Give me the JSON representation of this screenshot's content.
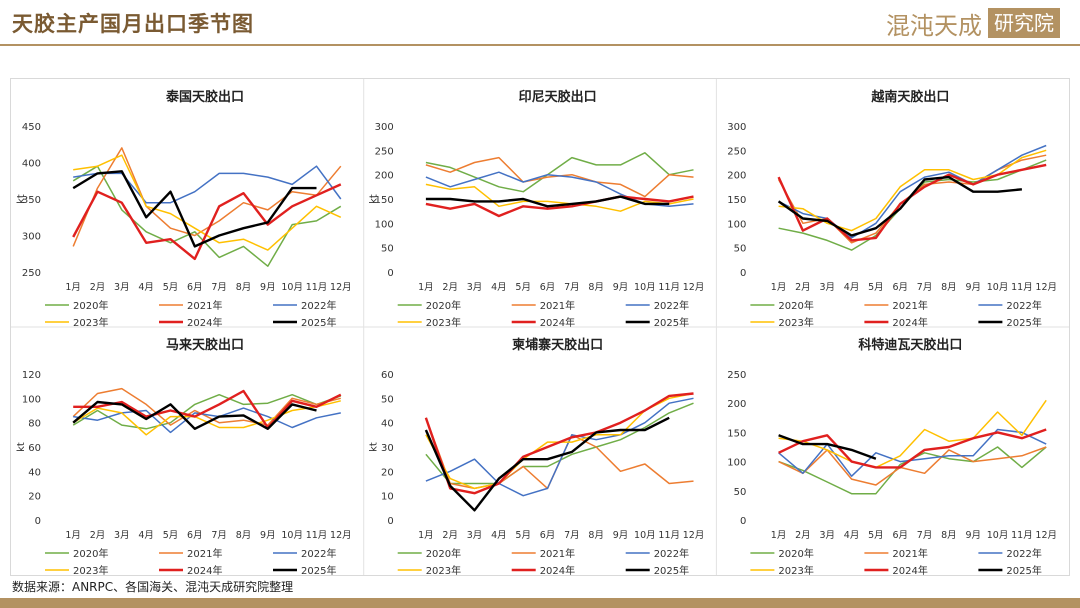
{
  "page": {
    "title": "天胶主产国月出口季节图",
    "brand_text": "混沌天成",
    "brand_box": "研究院",
    "source": "数据来源：ANRPC、各国海关、混沌天成研究院整理"
  },
  "chart_data": [
    {
      "type": "line",
      "title": "泰国天胶出口",
      "ylabel": "kt",
      "ylim": [
        250,
        450
      ],
      "yticks": [
        250,
        300,
        350,
        400,
        450
      ],
      "categories": [
        "1月",
        "2月",
        "3月",
        "4月",
        "5月",
        "6月",
        "7月",
        "8月",
        "9月",
        "10月",
        "11月",
        "12月"
      ],
      "series": [
        {
          "name": "2020年",
          "color": "#70ad47",
          "values": [
            375,
            395,
            335,
            305,
            290,
            305,
            270,
            285,
            258,
            315,
            320,
            340
          ]
        },
        {
          "name": "2021年",
          "color": "#ed7d31",
          "values": [
            285,
            365,
            420,
            340,
            310,
            300,
            320,
            345,
            335,
            360,
            355,
            395
          ]
        },
        {
          "name": "2022年",
          "color": "#4472c4",
          "values": [
            380,
            385,
            385,
            345,
            345,
            360,
            385,
            385,
            380,
            370,
            395,
            350
          ]
        },
        {
          "name": "2023年",
          "color": "#ffc000",
          "values": [
            390,
            395,
            410,
            340,
            330,
            310,
            290,
            295,
            280,
            310,
            340,
            325
          ]
        },
        {
          "name": "2024年",
          "color": "#e0201f",
          "values": [
            298,
            360,
            345,
            290,
            295,
            268,
            340,
            358,
            315,
            340,
            355,
            370
          ]
        },
        {
          "name": "2025年",
          "color": "#000000",
          "values": [
            365,
            385,
            388,
            325,
            360,
            285,
            300,
            310,
            318,
            365,
            365,
            null
          ]
        }
      ]
    },
    {
      "type": "line",
      "title": "印尼天胶出口",
      "ylabel": "kt",
      "ylim": [
        0,
        300
      ],
      "yticks": [
        0,
        50,
        100,
        150,
        200,
        250,
        300
      ],
      "categories": [
        "1月",
        "2月",
        "3月",
        "4月",
        "5月",
        "6月",
        "7月",
        "8月",
        "9月",
        "10月",
        "11月",
        "12月"
      ],
      "series": [
        {
          "name": "2020年",
          "color": "#70ad47",
          "values": [
            225,
            215,
            195,
            175,
            165,
            200,
            235,
            220,
            220,
            245,
            200,
            210
          ]
        },
        {
          "name": "2021年",
          "color": "#ed7d31",
          "values": [
            220,
            205,
            225,
            235,
            185,
            195,
            200,
            185,
            180,
            155,
            200,
            195
          ]
        },
        {
          "name": "2022年",
          "color": "#4472c4",
          "values": [
            195,
            175,
            190,
            205,
            185,
            200,
            195,
            185,
            160,
            140,
            135,
            140
          ]
        },
        {
          "name": "2023年",
          "color": "#ffc000",
          "values": [
            180,
            170,
            175,
            135,
            145,
            145,
            140,
            135,
            125,
            145,
            140,
            150
          ]
        },
        {
          "name": "2024年",
          "color": "#e0201f",
          "values": [
            140,
            130,
            140,
            115,
            135,
            130,
            135,
            145,
            155,
            150,
            145,
            155
          ]
        },
        {
          "name": "2025年",
          "color": "#000000",
          "values": [
            150,
            150,
            145,
            145,
            150,
            135,
            140,
            145,
            155,
            140,
            140,
            null
          ]
        }
      ]
    },
    {
      "type": "line",
      "title": "越南天胶出口",
      "ylabel": "",
      "ylim": [
        0,
        300
      ],
      "yticks": [
        0,
        50,
        100,
        150,
        200,
        250,
        300
      ],
      "categories": [
        "1月",
        "2月",
        "3月",
        "4月",
        "5月",
        "6月",
        "7月",
        "8月",
        "9月",
        "10月",
        "11月",
        "12月"
      ],
      "series": [
        {
          "name": "2020年",
          "color": "#70ad47",
          "values": [
            90,
            80,
            65,
            45,
            75,
            130,
            185,
            190,
            185,
            190,
            210,
            230
          ]
        },
        {
          "name": "2021年",
          "color": "#ed7d31",
          "values": [
            190,
            100,
            110,
            60,
            80,
            140,
            180,
            185,
            180,
            210,
            230,
            240
          ]
        },
        {
          "name": "2022年",
          "color": "#4472c4",
          "values": [
            145,
            120,
            110,
            70,
            100,
            165,
            195,
            205,
            180,
            210,
            240,
            260
          ]
        },
        {
          "name": "2023年",
          "color": "#ffc000",
          "values": [
            135,
            130,
            100,
            85,
            110,
            175,
            210,
            210,
            190,
            200,
            235,
            250
          ]
        },
        {
          "name": "2024年",
          "color": "#e0201f",
          "values": [
            195,
            85,
            110,
            65,
            70,
            140,
            175,
            200,
            180,
            200,
            210,
            220
          ]
        },
        {
          "name": "2025年",
          "color": "#000000",
          "values": [
            145,
            110,
            105,
            75,
            90,
            130,
            190,
            195,
            165,
            165,
            170,
            null
          ]
        }
      ]
    },
    {
      "type": "line",
      "title": "马来天胶出口",
      "ylabel": "kt",
      "ylim": [
        0,
        120
      ],
      "yticks": [
        0,
        20,
        40,
        60,
        80,
        100,
        120
      ],
      "categories": [
        "1月",
        "2月",
        "3月",
        "4月",
        "5月",
        "6月",
        "7月",
        "8月",
        "9月",
        "10月",
        "11月",
        "12月"
      ],
      "series": [
        {
          "name": "2020年",
          "color": "#70ad47",
          "values": [
            78,
            90,
            78,
            75,
            80,
            95,
            103,
            95,
            96,
            103,
            95,
            102
          ]
        },
        {
          "name": "2021年",
          "color": "#ed7d31",
          "values": [
            85,
            104,
            108,
            95,
            78,
            90,
            80,
            82,
            78,
            100,
            95,
            100
          ]
        },
        {
          "name": "2022年",
          "color": "#4472c4",
          "values": [
            85,
            82,
            88,
            90,
            72,
            88,
            85,
            92,
            85,
            76,
            84,
            88
          ]
        },
        {
          "name": "2023年",
          "color": "#ffc000",
          "values": [
            80,
            92,
            88,
            70,
            85,
            85,
            76,
            76,
            82,
            90,
            93,
            98
          ]
        },
        {
          "name": "2024年",
          "color": "#e0201f",
          "values": [
            93,
            93,
            97,
            85,
            90,
            85,
            95,
            106,
            76,
            98,
            93,
            103
          ]
        },
        {
          "name": "2025年",
          "color": "#000000",
          "values": [
            80,
            97,
            95,
            83,
            95,
            75,
            85,
            86,
            75,
            95,
            90,
            null
          ]
        }
      ]
    },
    {
      "type": "line",
      "title": "柬埔寨天胶出口",
      "ylabel": "kt",
      "ylim": [
        0,
        60
      ],
      "yticks": [
        0,
        10,
        20,
        30,
        40,
        50,
        60
      ],
      "categories": [
        "1月",
        "2月",
        "3月",
        "4月",
        "5月",
        "6月",
        "7月",
        "8月",
        "9月",
        "10月",
        "11月",
        "12月"
      ],
      "series": [
        {
          "name": "2020年",
          "color": "#70ad47",
          "values": [
            27,
            15,
            15,
            15,
            22,
            22,
            27,
            30,
            33,
            38,
            44,
            48
          ]
        },
        {
          "name": "2021年",
          "color": "#ed7d31",
          "values": [
            42,
            15,
            13,
            15,
            22,
            13,
            35,
            30,
            20,
            23,
            15,
            16
          ]
        },
        {
          "name": "2022年",
          "color": "#4472c4",
          "values": [
            16,
            20,
            25,
            15,
            10,
            13,
            35,
            33,
            35,
            40,
            48,
            50
          ]
        },
        {
          "name": "2023年",
          "color": "#ffc000",
          "values": [
            35,
            17,
            13,
            15,
            25,
            32,
            32,
            35,
            35,
            45,
            50,
            52
          ]
        },
        {
          "name": "2024年",
          "color": "#e0201f",
          "values": [
            42,
            13,
            11,
            15,
            26,
            30,
            34,
            36,
            40,
            45,
            51,
            52
          ]
        },
        {
          "name": "2025年",
          "color": "#000000",
          "values": [
            37,
            14,
            4,
            17,
            25,
            25,
            28,
            36,
            37,
            37,
            42,
            null
          ]
        }
      ]
    },
    {
      "type": "line",
      "title": "科特迪瓦天胶出口",
      "ylabel": "",
      "ylim": [
        0,
        250
      ],
      "yticks": [
        0,
        50,
        100,
        150,
        200,
        250
      ],
      "categories": [
        "1月",
        "2月",
        "3月",
        "4月",
        "5月",
        "6月",
        "7月",
        "8月",
        "9月",
        "10月",
        "11月",
        "12月"
      ],
      "series": [
        {
          "name": "2020年",
          "color": "#70ad47",
          "values": [
            100,
            85,
            65,
            45,
            45,
            95,
            115,
            105,
            100,
            125,
            90,
            125
          ]
        },
        {
          "name": "2021年",
          "color": "#ed7d31",
          "values": [
            100,
            80,
            120,
            70,
            60,
            90,
            80,
            120,
            100,
            105,
            110,
            125
          ]
        },
        {
          "name": "2022年",
          "color": "#4472c4",
          "values": [
            115,
            80,
            130,
            75,
            115,
            100,
            105,
            110,
            110,
            155,
            150,
            130
          ]
        },
        {
          "name": "2023年",
          "color": "#ffc000",
          "values": [
            140,
            135,
            120,
            100,
            90,
            110,
            155,
            135,
            140,
            185,
            145,
            205
          ]
        },
        {
          "name": "2024年",
          "color": "#e0201f",
          "values": [
            115,
            135,
            145,
            100,
            90,
            90,
            120,
            125,
            140,
            150,
            140,
            155
          ]
        },
        {
          "name": "2025年",
          "color": "#000000",
          "values": [
            145,
            130,
            130,
            120,
            105,
            null,
            null,
            null,
            null,
            null,
            null,
            null
          ]
        }
      ]
    }
  ]
}
